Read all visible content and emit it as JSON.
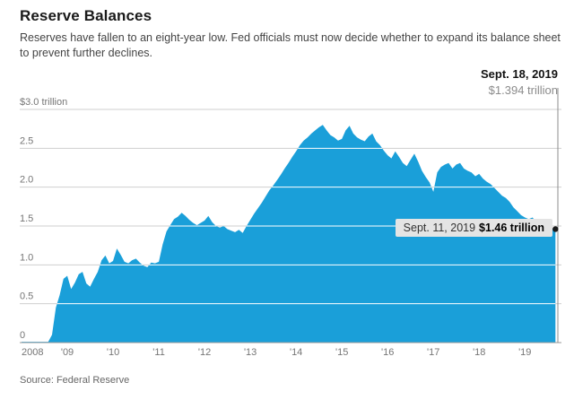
{
  "header": {
    "title": "Reserve Balances",
    "subtitle": "Reserves have fallen to an eight-year low. Fed officials must now decide whether to expand its balance sheet to prevent further declines."
  },
  "annotation": {
    "date": "Sept. 18, 2019",
    "value": "$1.394 trillion"
  },
  "tooltip": {
    "date": "Sept. 11, 2019",
    "value": "$1.46 trillion"
  },
  "source": "Source: Federal Reserve",
  "colors": {
    "area": "#1a9fd9",
    "grid": "#cfcfcf",
    "grid_over_area": "#ffffff",
    "axis": "#999999",
    "tick_label": "#757575",
    "marker_line": "#8c8c8c",
    "end_dot": "#1a1a1a",
    "tooltip_bg": "#e4e4e4"
  },
  "chart_data": {
    "type": "area",
    "title": "Reserve Balances",
    "ylabel": "trillions of dollars",
    "unit": "trillion USD",
    "xlim": [
      2008,
      2019.72
    ],
    "ylim": [
      0,
      3.0
    ],
    "grid": true,
    "x_start": 2008,
    "x_step_years": 0.0833333,
    "x_ticks": [
      2008,
      2009,
      2010,
      2011,
      2012,
      2013,
      2014,
      2015,
      2016,
      2017,
      2018,
      2019
    ],
    "x_tick_labels": [
      "2008",
      "'09",
      "'10",
      "'11",
      "'12",
      "'13",
      "'14",
      "'15",
      "'16",
      "'17",
      "'18",
      "'19"
    ],
    "y_ticks": [
      0,
      0.5,
      1.0,
      1.5,
      2.0,
      2.5,
      3.0
    ],
    "y_tick_labels": [
      "0",
      "0.5",
      "1.0",
      "1.5",
      "2.0",
      "2.5",
      "$3.0 trillion"
    ],
    "marker_line_x": 2019.72,
    "latest_value": 1.394,
    "end_point_value": 1.46,
    "values": [
      0.01,
      0.01,
      0.01,
      0.01,
      0.01,
      0.01,
      0.01,
      0.01,
      0.1,
      0.45,
      0.61,
      0.82,
      0.86,
      0.69,
      0.77,
      0.88,
      0.91,
      0.76,
      0.72,
      0.82,
      0.91,
      1.06,
      1.12,
      1.02,
      1.05,
      1.21,
      1.13,
      1.04,
      1.02,
      1.06,
      1.08,
      1.03,
      0.99,
      0.97,
      1.03,
      1.02,
      1.04,
      1.26,
      1.43,
      1.51,
      1.59,
      1.62,
      1.67,
      1.63,
      1.58,
      1.54,
      1.51,
      1.54,
      1.57,
      1.63,
      1.55,
      1.5,
      1.48,
      1.5,
      1.46,
      1.44,
      1.42,
      1.45,
      1.41,
      1.5,
      1.58,
      1.66,
      1.73,
      1.8,
      1.88,
      1.96,
      2.02,
      2.09,
      2.16,
      2.24,
      2.31,
      2.39,
      2.46,
      2.54,
      2.6,
      2.64,
      2.69,
      2.73,
      2.77,
      2.8,
      2.73,
      2.67,
      2.64,
      2.6,
      2.62,
      2.73,
      2.79,
      2.69,
      2.64,
      2.61,
      2.59,
      2.65,
      2.69,
      2.59,
      2.54,
      2.47,
      2.41,
      2.37,
      2.46,
      2.39,
      2.31,
      2.27,
      2.35,
      2.43,
      2.33,
      2.21,
      2.13,
      2.06,
      1.94,
      2.19,
      2.26,
      2.29,
      2.31,
      2.24,
      2.29,
      2.31,
      2.24,
      2.21,
      2.19,
      2.14,
      2.17,
      2.11,
      2.07,
      2.04,
      1.99,
      1.94,
      1.89,
      1.86,
      1.81,
      1.74,
      1.69,
      1.64,
      1.61,
      1.59,
      1.61,
      1.55,
      1.53,
      1.57,
      1.51,
      1.47,
      1.46
    ]
  }
}
